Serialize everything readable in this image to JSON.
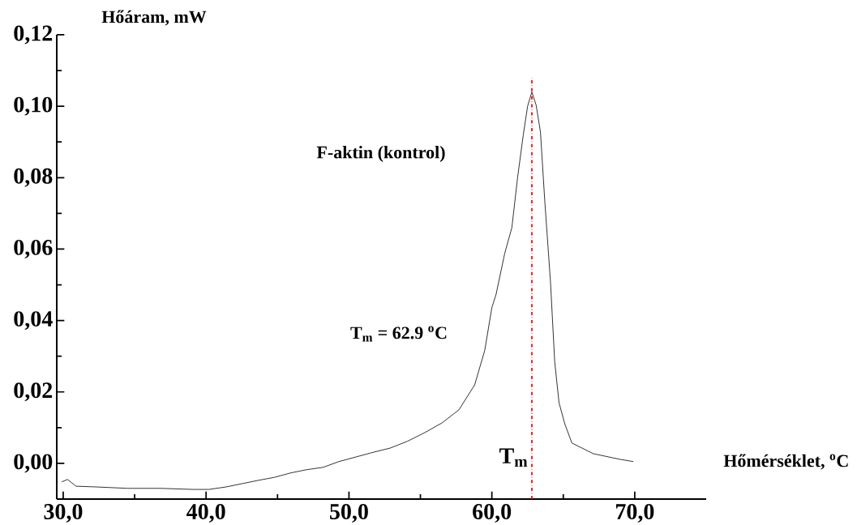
{
  "chart_data": {
    "type": "line",
    "xlabel": "Hőmérséklet, $^{o}$C",
    "ylabel": "Hőáram, mW",
    "annotations": [
      "T$_{m}$ = 62.9 $^{o}$C"
    ],
    "xlim": [
      29.55,
      75
    ],
    "ylim": [
      -0.01,
      0.12
    ],
    "xticks": [
      {
        "value": 30,
        "label": "30,0"
      },
      {
        "value": 35,
        "label": null
      },
      {
        "value": 40,
        "label": "40,0"
      },
      {
        "value": 45,
        "label": null
      },
      {
        "value": 50,
        "label": "50,0"
      },
      {
        "value": 55,
        "label": null
      },
      {
        "value": 60,
        "label": "60,0"
      },
      {
        "value": 65,
        "label": null
      },
      {
        "value": 70,
        "label": "70,0"
      }
    ],
    "yticks": [
      {
        "value": 0,
        "label": "0,00"
      },
      {
        "value": 0.01,
        "label": null
      },
      {
        "value": 0.02,
        "label": "0,02"
      },
      {
        "value": 0.03,
        "label": null
      },
      {
        "value": 0.04,
        "label": "0,04"
      },
      {
        "value": 0.05,
        "label": null
      },
      {
        "value": 0.06,
        "label": "0,06"
      },
      {
        "value": 0.07,
        "label": null
      },
      {
        "value": 0.08,
        "label": "0,08"
      },
      {
        "value": 0.09,
        "label": null
      },
      {
        "value": 0.1,
        "label": "0,10"
      },
      {
        "value": 0.11,
        "label": null
      },
      {
        "value": 0.12,
        "label": "0,12"
      }
    ],
    "ref_lines": [
      {
        "axis": "x",
        "value": 62.8,
        "label": "T$_{m}$",
        "color": "#ff0000",
        "line_style": "dashdot"
      }
    ],
    "series": [
      {
        "name": "F-aktin (kontrol)",
        "color": "#000000",
        "x": [
          29.9,
          30.3,
          30.9,
          32.3,
          34.5,
          36.8,
          39.1,
          40.2,
          41.4,
          42.5,
          43.6,
          44.8,
          45.9,
          47.0,
          48.2,
          49.3,
          50.5,
          51.6,
          52.9,
          54.1,
          55.3,
          56.5,
          57.7,
          58.8,
          59.5,
          60.0,
          60.3,
          60.9,
          61.4,
          61.8,
          62.2,
          62.5,
          62.8,
          63.1,
          63.4,
          63.7,
          64.1,
          64.4,
          64.7,
          65.1,
          65.6,
          67.1,
          69.0,
          69.9
        ],
        "values": [
          -0.0052,
          -0.0045,
          -0.0064,
          -0.0066,
          -0.007,
          -0.007,
          -0.0073,
          -0.0073,
          -0.0066,
          -0.0057,
          -0.0048,
          -0.0039,
          -0.0027,
          -0.0018,
          -0.0011,
          0.0005,
          0.0018,
          0.003,
          0.0043,
          0.0062,
          0.0086,
          0.0113,
          0.015,
          0.022,
          0.0316,
          0.0436,
          0.0474,
          0.0588,
          0.066,
          0.08,
          0.092,
          0.1,
          0.104,
          0.1003,
          0.0928,
          0.0737,
          0.051,
          0.0284,
          0.017,
          0.0111,
          0.0057,
          0.0027,
          0.0011,
          0.0005
        ]
      }
    ]
  }
}
